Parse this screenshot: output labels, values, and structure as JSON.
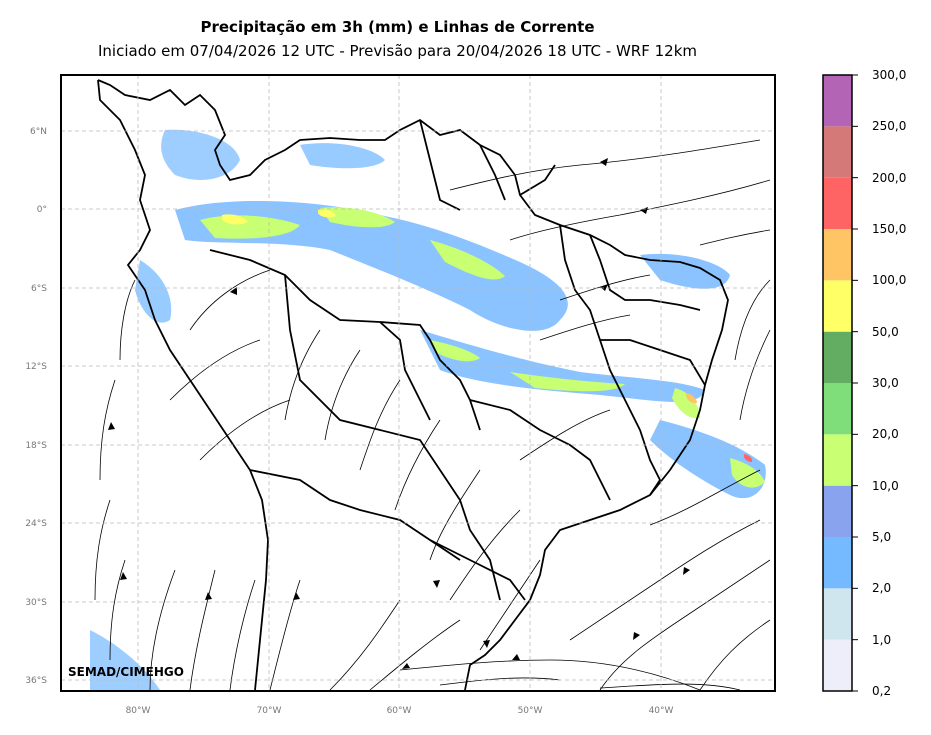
{
  "title": "Precipitação em 3h (mm) e Linhas de Corrente",
  "subtitle": "Iniciado em 07/04/2026 12 UTC - Previsão para 20/04/2026 18 UTC - WRF 12km",
  "credit": "SEMAD/CIMEHGO",
  "map": {
    "lat_ticks": [
      "6°N",
      "0°",
      "6°S",
      "12°S",
      "18°S",
      "24°S",
      "30°S",
      "36°S"
    ],
    "lon_ticks": [
      "80°W",
      "70°W",
      "60°W",
      "50°W",
      "40°W"
    ],
    "gridlines": true,
    "extent": {
      "lon": [
        -86,
        -32
      ],
      "lat": [
        -37,
        10
      ]
    }
  },
  "colorbar": {
    "labels": [
      "0,2",
      "1,0",
      "2,0",
      "5,0",
      "10,0",
      "20,0",
      "30,0",
      "50,0",
      "100,0",
      "150,0",
      "200,0",
      "250,0",
      "300,0"
    ],
    "colors": [
      "#eeeefa",
      "#cfe6ef",
      "#75b9ff",
      "#8aa3ef",
      "#c8ff73",
      "#7fdd7a",
      "#63ad63",
      "#ffff66",
      "#ffc464",
      "#ff6464",
      "#d47878",
      "#b464b4"
    ]
  }
}
